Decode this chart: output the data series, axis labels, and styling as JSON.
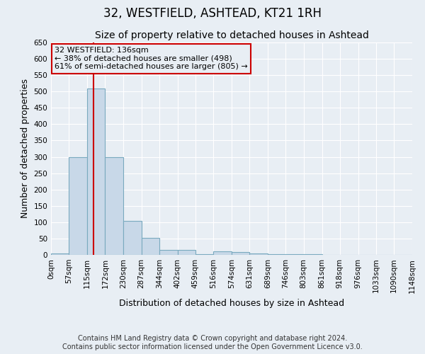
{
  "title": "32, WESTFIELD, ASHTEAD, KT21 1RH",
  "subtitle": "Size of property relative to detached houses in Ashtead",
  "xlabel": "Distribution of detached houses by size in Ashtead",
  "ylabel": "Number of detached properties",
  "bin_edges": [
    0,
    57,
    115,
    172,
    230,
    287,
    344,
    402,
    459,
    516,
    574,
    631,
    689,
    746,
    803,
    861,
    918,
    976,
    1033,
    1090,
    1148
  ],
  "bin_labels": [
    "0sqm",
    "57sqm",
    "115sqm",
    "172sqm",
    "230sqm",
    "287sqm",
    "344sqm",
    "402sqm",
    "459sqm",
    "516sqm",
    "574sqm",
    "631sqm",
    "689sqm",
    "746sqm",
    "803sqm",
    "861sqm",
    "918sqm",
    "976sqm",
    "1033sqm",
    "1090sqm",
    "1148sqm"
  ],
  "bar_heights": [
    5,
    300,
    510,
    300,
    105,
    52,
    15,
    15,
    2,
    10,
    8,
    5,
    2,
    2,
    2,
    1,
    1,
    1,
    1,
    1
  ],
  "bar_color": "#c8d8e8",
  "bar_edge_color": "#7aaabf",
  "property_line_x": 136,
  "property_line_color": "#cc0000",
  "ylim": [
    0,
    650
  ],
  "yticks": [
    0,
    50,
    100,
    150,
    200,
    250,
    300,
    350,
    400,
    450,
    500,
    550,
    600,
    650
  ],
  "annotation_title": "32 WESTFIELD: 136sqm",
  "annotation_line1": "← 38% of detached houses are smaller (498)",
  "annotation_line2": "61% of semi-detached houses are larger (805) →",
  "annotation_box_color": "#cc0000",
  "footer_line1": "Contains HM Land Registry data © Crown copyright and database right 2024.",
  "footer_line2": "Contains public sector information licensed under the Open Government Licence v3.0.",
  "background_color": "#e8eef4",
  "grid_color": "#ffffff",
  "title_fontsize": 12,
  "subtitle_fontsize": 10,
  "axis_label_fontsize": 9,
  "tick_fontsize": 7.5,
  "annotation_fontsize": 8,
  "footer_fontsize": 7
}
